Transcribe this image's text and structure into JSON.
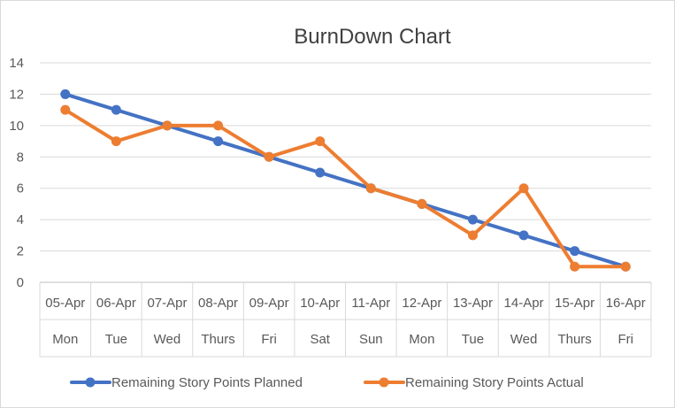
{
  "chart_data": {
    "type": "line",
    "title": "BurnDown Chart",
    "categories": [
      "05-Apr",
      "06-Apr",
      "07-Apr",
      "08-Apr",
      "09-Apr",
      "10-Apr",
      "11-Apr",
      "12-Apr",
      "13-Apr",
      "14-Apr",
      "15-Apr",
      "16-Apr"
    ],
    "days": [
      "Mon",
      "Tue",
      "Wed",
      "Thurs",
      "Fri",
      "Sat",
      "Sun",
      "Mon",
      "Tue",
      "Wed",
      "Thurs",
      "Fri"
    ],
    "ylim": [
      0,
      14
    ],
    "yticks": [
      0,
      2,
      4,
      6,
      8,
      10,
      12,
      14
    ],
    "grid": true,
    "legend_position": "bottom",
    "series": [
      {
        "name": "Remaining Story Points Planned",
        "color": "#4472c4",
        "values": [
          12,
          11,
          10,
          9,
          8,
          7,
          6,
          5,
          4,
          3,
          2,
          1
        ]
      },
      {
        "name": "Remaining Story Points Actual",
        "color": "#ed7d31",
        "values": [
          11,
          9,
          10,
          10,
          8,
          9,
          6,
          5,
          3,
          6,
          1,
          1
        ]
      }
    ]
  }
}
